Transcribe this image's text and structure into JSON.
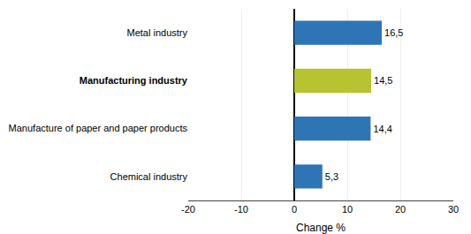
{
  "chart_data": {
    "type": "bar",
    "orientation": "horizontal",
    "categories": [
      "Chemical industry",
      "Manufacture of paper and paper products",
      "Manufacturing industry",
      "Metal industry"
    ],
    "values": [
      5.3,
      14.4,
      14.5,
      16.5
    ],
    "value_labels": [
      "5,3",
      "14,4",
      "14,5",
      "16,5"
    ],
    "data_labels": true,
    "colors": [
      "#2e75b6",
      "#2e75b6",
      "#b5c430",
      "#2e75b6"
    ],
    "xlabel": "Change %",
    "xlim": [
      -20,
      30
    ],
    "xticks": [
      -20,
      -10,
      0,
      10,
      20,
      30
    ],
    "grid": true
  }
}
